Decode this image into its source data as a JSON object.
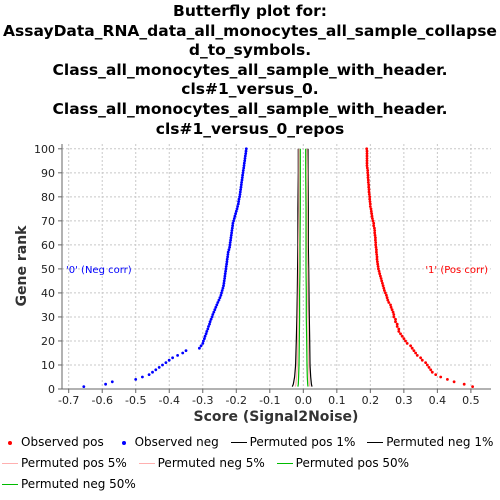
{
  "title_lines": [
    "Butterfly plot for:",
    "AssayData_RNA_data_all_monocytes_all_sample_collapse",
    "d_to_symbols.",
    "Class_all_monocytes_all_sample_with_header.",
    "cls#1_versus_0.",
    "Class_all_monocytes_all_sample_with_header.",
    "cls#1_versus_0_repos"
  ],
  "colors": {
    "observed_pos": "#ff0000",
    "observed_neg": "#0000ff",
    "perm_1": "#000000",
    "perm_5": "#ffb0b0",
    "perm_50": "#00bb00",
    "grid": "#c8c8c8"
  },
  "chart_data": {
    "type": "scatter",
    "xlabel": "Score (Signal2Noise)",
    "ylabel": "Gene rank",
    "xlim": [
      -0.72,
      0.56
    ],
    "ylim": [
      0,
      102
    ],
    "x_ticks": [
      "-0.7",
      "-0.6",
      "-0.5",
      "-0.4",
      "-0.3",
      "-0.2",
      "-0.1",
      "0.0",
      "0.1",
      "0.2",
      "0.3",
      "0.4",
      "0.5"
    ],
    "y_ticks": [
      "0",
      "10",
      "20",
      "30",
      "40",
      "50",
      "60",
      "70",
      "80",
      "90",
      "100"
    ],
    "grid": true,
    "annotations": {
      "neg": "'0' (Neg corr)",
      "pos": "'1' (Pos corr)"
    },
    "series": [
      {
        "name": "Observed pos",
        "style": "points",
        "x": [
          0.505,
          0.48,
          0.45,
          0.43,
          0.41,
          0.395,
          0.385,
          0.38,
          0.375,
          0.37,
          0.365,
          0.355,
          0.35,
          0.34,
          0.335,
          0.33,
          0.325,
          0.32,
          0.31,
          0.305,
          0.3,
          0.295,
          0.29,
          0.285,
          0.285,
          0.28,
          0.28,
          0.275,
          0.275,
          0.27,
          0.27,
          0.268,
          0.265,
          0.262,
          0.26,
          0.255,
          0.252,
          0.25,
          0.248,
          0.245,
          0.242,
          0.24,
          0.238,
          0.236,
          0.234,
          0.232,
          0.23,
          0.228,
          0.226,
          0.224,
          0.223,
          0.222,
          0.221,
          0.22,
          0.22,
          0.219,
          0.218,
          0.218,
          0.217,
          0.216,
          0.216,
          0.215,
          0.215,
          0.214,
          0.213,
          0.213,
          0.212,
          0.21,
          0.21,
          0.208,
          0.206,
          0.205,
          0.204,
          0.203,
          0.202,
          0.2,
          0.2,
          0.199,
          0.198,
          0.198,
          0.197,
          0.196,
          0.196,
          0.195,
          0.195,
          0.194,
          0.194,
          0.193,
          0.193,
          0.192,
          0.192,
          0.191,
          0.19,
          0.19,
          0.19,
          0.19,
          0.19,
          0.19,
          0.19,
          0.189
        ],
        "y": [
          1,
          2,
          3,
          4,
          5,
          6,
          7,
          8,
          9,
          10,
          11,
          12,
          13,
          14,
          15,
          16,
          17,
          18,
          19,
          20,
          21,
          22,
          23,
          24,
          25,
          26,
          27,
          28,
          29,
          30,
          31,
          32,
          33,
          34,
          35,
          36,
          37,
          38,
          39,
          40,
          41,
          42,
          43,
          44,
          45,
          46,
          47,
          48,
          49,
          50,
          51,
          52,
          53,
          54,
          55,
          56,
          57,
          58,
          59,
          60,
          61,
          62,
          63,
          64,
          65,
          66,
          67,
          68,
          69,
          70,
          71,
          72,
          73,
          74,
          75,
          76,
          77,
          78,
          79,
          80,
          81,
          82,
          83,
          84,
          85,
          86,
          87,
          88,
          89,
          90,
          91,
          92,
          93,
          94,
          95,
          96,
          97,
          98,
          99,
          100
        ]
      },
      {
        "name": "Observed neg",
        "style": "points",
        "x": [
          -0.655,
          -0.59,
          -0.57,
          -0.5,
          -0.48,
          -0.46,
          -0.45,
          -0.44,
          -0.43,
          -0.42,
          -0.41,
          -0.4,
          -0.39,
          -0.375,
          -0.36,
          -0.35,
          -0.31,
          -0.305,
          -0.3,
          -0.298,
          -0.295,
          -0.293,
          -0.29,
          -0.288,
          -0.285,
          -0.283,
          -0.28,
          -0.278,
          -0.275,
          -0.272,
          -0.27,
          -0.267,
          -0.264,
          -0.261,
          -0.258,
          -0.255,
          -0.252,
          -0.249,
          -0.246,
          -0.244,
          -0.242,
          -0.24,
          -0.238,
          -0.237,
          -0.236,
          -0.235,
          -0.234,
          -0.233,
          -0.232,
          -0.231,
          -0.23,
          -0.229,
          -0.228,
          -0.227,
          -0.226,
          -0.225,
          -0.224,
          -0.222,
          -0.22,
          -0.219,
          -0.218,
          -0.217,
          -0.216,
          -0.215,
          -0.214,
          -0.213,
          -0.212,
          -0.211,
          -0.21,
          -0.208,
          -0.206,
          -0.204,
          -0.202,
          -0.2,
          -0.198,
          -0.196,
          -0.194,
          -0.193,
          -0.192,
          -0.19,
          -0.189,
          -0.188,
          -0.187,
          -0.186,
          -0.185,
          -0.184,
          -0.183,
          -0.182,
          -0.181,
          -0.18,
          -0.179,
          -0.178,
          -0.177,
          -0.176,
          -0.175,
          -0.174,
          -0.173,
          -0.172,
          -0.171,
          -0.17
        ],
        "y": [
          1,
          2,
          3,
          4,
          5,
          6,
          7,
          8,
          9,
          10,
          11,
          12,
          13,
          14,
          15,
          16,
          17,
          18,
          19,
          20,
          21,
          22,
          23,
          24,
          25,
          26,
          27,
          28,
          29,
          30,
          31,
          32,
          33,
          34,
          35,
          36,
          37,
          38,
          39,
          40,
          41,
          42,
          43,
          44,
          45,
          46,
          47,
          48,
          49,
          50,
          51,
          52,
          53,
          54,
          55,
          56,
          57,
          58,
          59,
          60,
          61,
          62,
          63,
          64,
          65,
          66,
          67,
          68,
          69,
          70,
          71,
          72,
          73,
          74,
          75,
          76,
          77,
          78,
          79,
          80,
          81,
          82,
          83,
          84,
          85,
          86,
          87,
          88,
          89,
          90,
          91,
          92,
          93,
          94,
          95,
          96,
          97,
          98,
          99,
          100
        ]
      },
      {
        "name": "Permuted pos 1%",
        "style": "line",
        "color_key": "perm_1",
        "x": [
          0.026,
          0.024,
          0.022,
          0.02,
          0.019,
          0.018,
          0.017,
          0.016,
          0.015,
          0.015,
          0.014,
          0.014
        ],
        "y": [
          1,
          2,
          5,
          10,
          20,
          30,
          40,
          50,
          60,
          75,
          90,
          100
        ]
      },
      {
        "name": "Permuted neg 1%",
        "style": "line",
        "color_key": "perm_1",
        "x": [
          -0.033,
          -0.03,
          -0.026,
          -0.023,
          -0.021,
          -0.019,
          -0.018,
          -0.017,
          -0.016,
          -0.016,
          -0.015,
          -0.015
        ],
        "y": [
          1,
          2,
          5,
          10,
          20,
          30,
          40,
          50,
          60,
          75,
          90,
          100
        ]
      },
      {
        "name": "Permuted pos 5%",
        "style": "line",
        "color_key": "perm_5",
        "x": [
          0.02,
          0.018,
          0.017,
          0.016,
          0.015,
          0.014,
          0.013,
          0.013,
          0.012,
          0.012,
          0.012,
          0.011
        ],
        "y": [
          1,
          2,
          5,
          10,
          20,
          30,
          40,
          50,
          60,
          75,
          90,
          100
        ]
      },
      {
        "name": "Permuted neg 5%",
        "style": "line",
        "color_key": "perm_5",
        "x": [
          -0.024,
          -0.022,
          -0.02,
          -0.018,
          -0.017,
          -0.016,
          -0.015,
          -0.014,
          -0.014,
          -0.013,
          -0.013,
          -0.013
        ],
        "y": [
          1,
          2,
          5,
          10,
          20,
          30,
          40,
          50,
          60,
          75,
          90,
          100
        ]
      },
      {
        "name": "Permuted pos 50%",
        "style": "line",
        "color_key": "perm_50",
        "x": [
          0.014,
          0.013,
          0.012,
          0.011,
          0.01,
          0.009,
          0.009,
          0.008,
          0.008,
          0.008,
          0.007,
          0.007
        ],
        "y": [
          1,
          2,
          5,
          10,
          20,
          30,
          40,
          50,
          60,
          75,
          90,
          100
        ]
      },
      {
        "name": "Permuted neg 50%",
        "style": "line",
        "color_key": "perm_50",
        "x": [
          -0.016,
          -0.015,
          -0.014,
          -0.013,
          -0.012,
          -0.011,
          -0.011,
          -0.01,
          -0.01,
          -0.009,
          -0.009,
          -0.009
        ],
        "y": [
          1,
          2,
          5,
          10,
          20,
          30,
          40,
          50,
          60,
          75,
          90,
          100
        ]
      }
    ]
  },
  "legend": [
    {
      "label": "Observed pos",
      "kind": "dot",
      "color_key": "observed_pos"
    },
    {
      "label": "Observed neg",
      "kind": "dot",
      "color_key": "observed_neg"
    },
    {
      "label": "Permuted pos 1%",
      "kind": "line",
      "color_key": "perm_1"
    },
    {
      "label": "Permuted neg 1%",
      "kind": "line",
      "color_key": "perm_1"
    },
    {
      "label": "Permuted pos 5%",
      "kind": "line",
      "color_key": "perm_5"
    },
    {
      "label": "Permuted neg 5%",
      "kind": "line",
      "color_key": "perm_5"
    },
    {
      "label": "Permuted pos 50%",
      "kind": "line",
      "color_key": "perm_50"
    },
    {
      "label": "Permuted neg 50%",
      "kind": "line",
      "color_key": "perm_50"
    }
  ]
}
